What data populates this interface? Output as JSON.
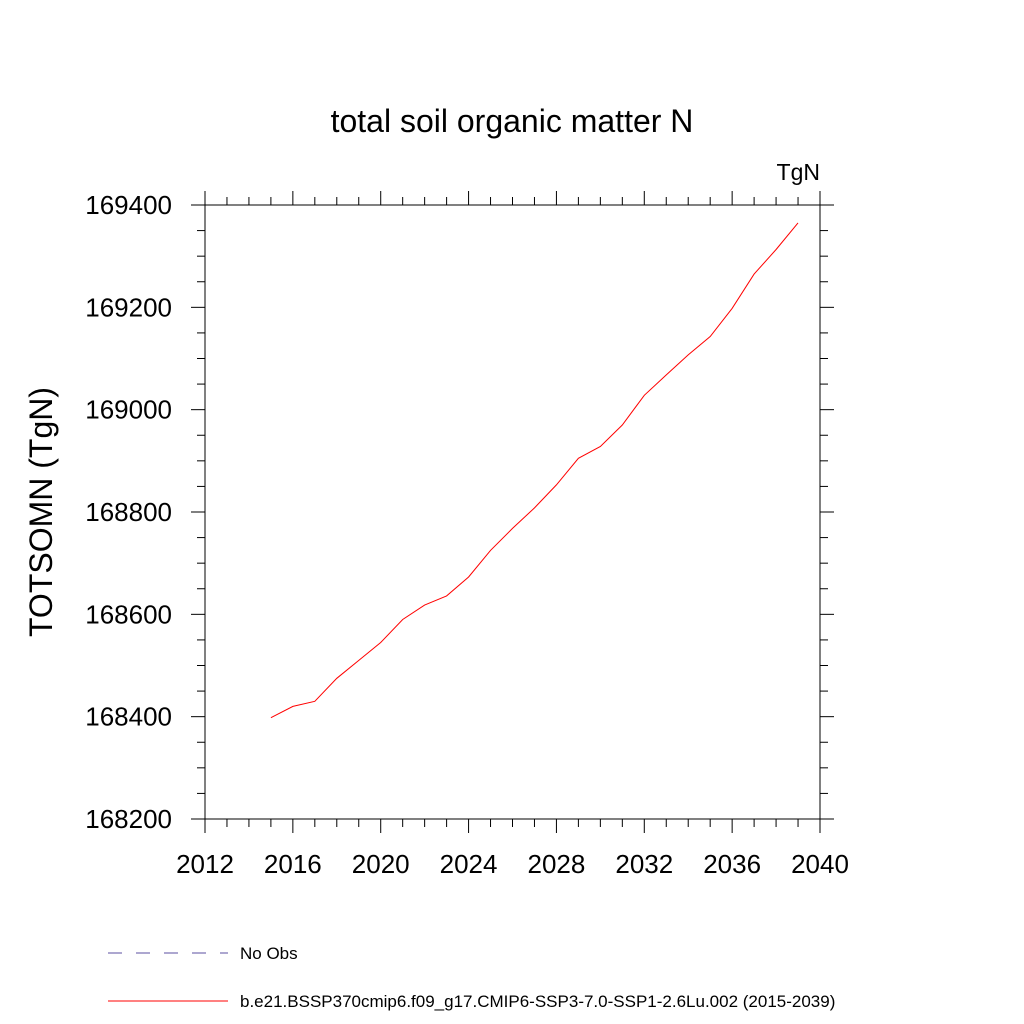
{
  "chart_data": {
    "type": "line",
    "title": "total soil organic matter N",
    "units_label": "TgN",
    "ylabel": "TOTSOMN  (TgN)",
    "xlabel": "",
    "xlim": [
      2012,
      2040
    ],
    "ylim": [
      168200,
      169400
    ],
    "x_ticks": [
      2012,
      2016,
      2020,
      2024,
      2028,
      2032,
      2036,
      2040
    ],
    "y_ticks": [
      168200,
      168400,
      168600,
      168800,
      169000,
      169200,
      169400
    ],
    "x_tick_labels": [
      "2012",
      "2016",
      "2020",
      "2024",
      "2028",
      "2032",
      "2036",
      "2040"
    ],
    "y_tick_labels": [
      "168200",
      "168400",
      "168600",
      "168800",
      "169000",
      "169200",
      "169400"
    ],
    "grid": false,
    "legend_position": "bottom",
    "series": [
      {
        "name": "No Obs",
        "color": "#5b4fa0",
        "dash": "dashed",
        "values": []
      },
      {
        "name": "b.e21.BSSP370cmip6.f09_g17.CMIP6-SSP3-7.0-SSP1-2.6Lu.002 (2015-2039)",
        "color": "#ff0000",
        "dash": "solid",
        "x": [
          2015,
          2016,
          2017,
          2018,
          2019,
          2020,
          2021,
          2022,
          2023,
          2024,
          2025,
          2026,
          2027,
          2028,
          2029,
          2030,
          2031,
          2032,
          2033,
          2034,
          2035,
          2036,
          2037,
          2038,
          2039
        ],
        "values": [
          168398,
          168420,
          168430,
          168475,
          168510,
          168545,
          168590,
          168618,
          168636,
          168673,
          168725,
          168768,
          168808,
          168853,
          168905,
          168928,
          168970,
          169028,
          169068,
          169107,
          169143,
          169198,
          169265,
          169313,
          169365
        ]
      }
    ]
  }
}
